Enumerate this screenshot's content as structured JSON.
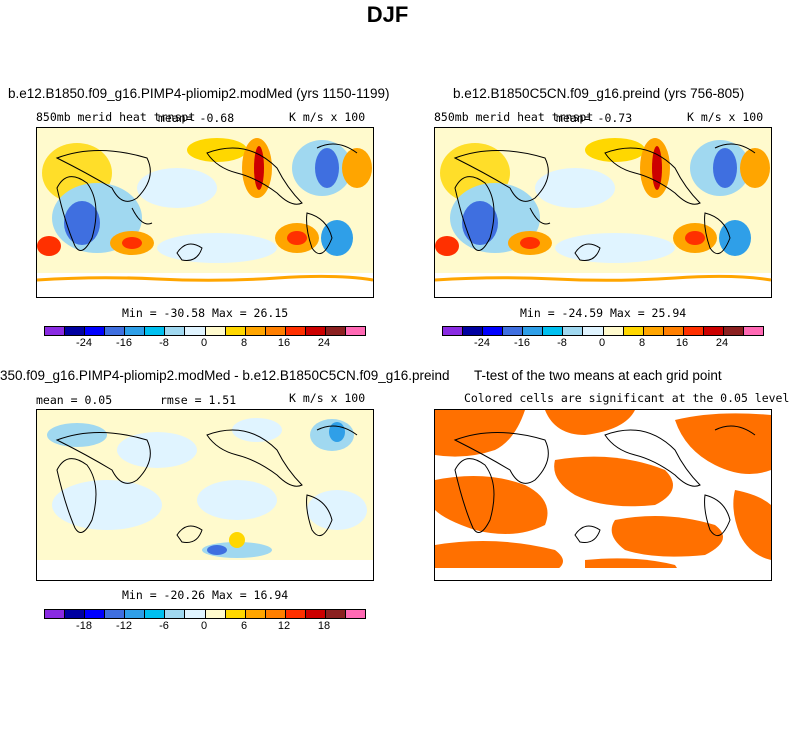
{
  "title": "DJF",
  "colorbar_colors": [
    "#8a2be2",
    "#0000a0",
    "#0000ff",
    "#3f6fe0",
    "#2f9fe8",
    "#00c0f0",
    "#a0d8f0",
    "#e0f4ff",
    "#fffacd",
    "#ffd700",
    "#ffa500",
    "#ff7f00",
    "#ff3000",
    "#cc0000",
    "#8b2020",
    "#ff69b4"
  ],
  "panel1": {
    "title": "b.e12.B1850.f09_g16.PIMP4-pliomip2.modMed (yrs 1150-1199)",
    "left": "850mb merid heat trnspt",
    "mean": "mean=   -0.68",
    "units": "K m/s x 100",
    "stats": "Min = -30.58  Max =  26.15",
    "ticks": [
      "-24",
      "-16",
      "-8",
      "0",
      "8",
      "16",
      "24"
    ]
  },
  "panel2": {
    "title": "b.e12.B1850C5CN.f09_g16.preind (yrs 756-805)",
    "left": "850mb merid heat trnspt",
    "mean": "mean=   -0.73",
    "units": "K m/s x 100",
    "stats": "Min = -24.59  Max =  25.94",
    "ticks": [
      "-24",
      "-16",
      "-8",
      "0",
      "8",
      "16",
      "24"
    ]
  },
  "panel3": {
    "title": "350.f09_g16.PIMP4-pliomip2.modMed - b.e12.B1850C5CN.f09_g16.preind",
    "mean": "mean =   0.05",
    "rmse": "rmse =   1.51",
    "units": "K m/s x 100",
    "stats": "Min = -20.26  Max =  16.94",
    "ticks": [
      "-18",
      "-12",
      "-6",
      "0",
      "6",
      "12",
      "18"
    ]
  },
  "panel4": {
    "title": "T-test of the two means at each grid point",
    "subtitle": "Colored cells are significant at the 0.05 level",
    "sig_color": "#ff7000"
  }
}
